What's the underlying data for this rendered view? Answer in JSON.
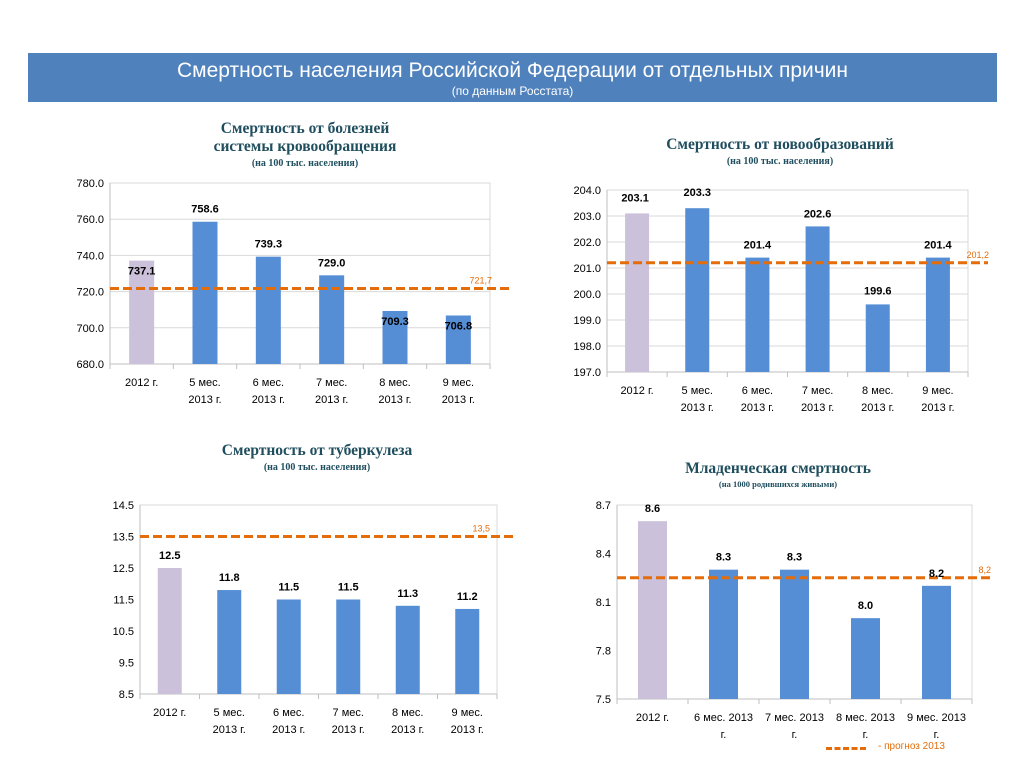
{
  "header": {
    "title": "Смертность населения Российской Федерации от отдельных причин",
    "subtitle": "(по данным Росстата)"
  },
  "colors": {
    "banner": "#4f81bd",
    "bar_base": "#ccc1da",
    "bar": "#558ed5",
    "forecast": "#e46c0a",
    "title": "#1f4e5e"
  },
  "chart_data": [
    {
      "id": "cardio",
      "type": "bar",
      "title": "Смертность от болезней\nсистемы кровообращения",
      "subtitle": "(на 100 тыс. населения)",
      "categories": [
        "2012 г.\n",
        "5 мес.\n2013 г.",
        "6 мес.\n2013 г.",
        "7 мес.\n2013 г.",
        "8 мес.\n2013 г.",
        "9 мес.\n2013 г."
      ],
      "values": [
        737.1,
        758.6,
        739.3,
        729.0,
        709.3,
        706.8
      ],
      "value_labels": [
        "737.1",
        "758.6",
        "739.3",
        "729.0",
        "709.3",
        "706.8"
      ],
      "ylim": [
        680,
        780
      ],
      "yticks": [
        "680.0",
        "700.0",
        "720.0",
        "740.0",
        "760.0",
        "780.0"
      ],
      "forecast": 721.7,
      "forecast_label": "721,7",
      "grid": true
    },
    {
      "id": "neoplasm",
      "type": "bar",
      "title": "Смертность от новообразований",
      "subtitle": "(на 100 тыс. населения)",
      "categories": [
        "2012 г.\n",
        "5 мес.\n2013 г.",
        "6 мес.\n2013 г.",
        "7 мес.\n2013 г.",
        "8 мес.\n2013 г.",
        "9 мес.\n2013 г."
      ],
      "values": [
        203.1,
        203.3,
        201.4,
        202.6,
        199.6,
        201.4
      ],
      "value_labels": [
        "203.1",
        "203.3",
        "201.4",
        "202.6",
        "199.6",
        "201.4"
      ],
      "ylim": [
        197,
        204
      ],
      "yticks": [
        "197.0",
        "198.0",
        "199.0",
        "200.0",
        "201.0",
        "202.0",
        "203.0",
        "204.0"
      ],
      "forecast": 201.2,
      "forecast_label": "201,2",
      "grid": true
    },
    {
      "id": "tb",
      "type": "bar",
      "title": "Смертность от туберкулеза",
      "subtitle": "(на 100 тыс. населения)",
      "categories": [
        "2012 г.\n",
        "5 мес.\n2013 г.",
        "6 мес.\n2013 г.",
        "7 мес.\n2013 г.",
        "8 мес.\n2013 г.",
        "9 мес.\n2013 г."
      ],
      "values": [
        12.5,
        11.8,
        11.5,
        11.5,
        11.3,
        11.2
      ],
      "value_labels": [
        "12.5",
        "11.8",
        "11.5",
        "11.5",
        "11.3",
        "11.2"
      ],
      "ylim": [
        8.5,
        14.5
      ],
      "yticks": [
        "8.5",
        "9.5",
        "10.5",
        "11.5",
        "12.5",
        "13.5",
        "14.5"
      ],
      "forecast": 13.5,
      "forecast_label": "13,5",
      "grid": false
    },
    {
      "id": "infant",
      "type": "bar",
      "title": "Младенческая смертность",
      "subtitle": "(на 1000 родившихся живыми)",
      "categories": [
        "2012 г.\n",
        "6 мес. 2013\nг.",
        "7 мес. 2013\nг.",
        "8 мес. 2013\nг.",
        "9 мес. 2013\nг."
      ],
      "values": [
        8.6,
        8.3,
        8.3,
        8.0,
        8.2
      ],
      "value_labels": [
        "8.6",
        "8.3",
        "8.3",
        "8.0",
        "8.2"
      ],
      "ylim": [
        7.5,
        8.7
      ],
      "yticks": [
        "7.5",
        "7.8",
        "8.1",
        "8.4",
        "8.7"
      ],
      "forecast": 8.25,
      "forecast_label": "8,2",
      "grid": false
    }
  ],
  "legend": {
    "label": "- прогноз 2013"
  }
}
